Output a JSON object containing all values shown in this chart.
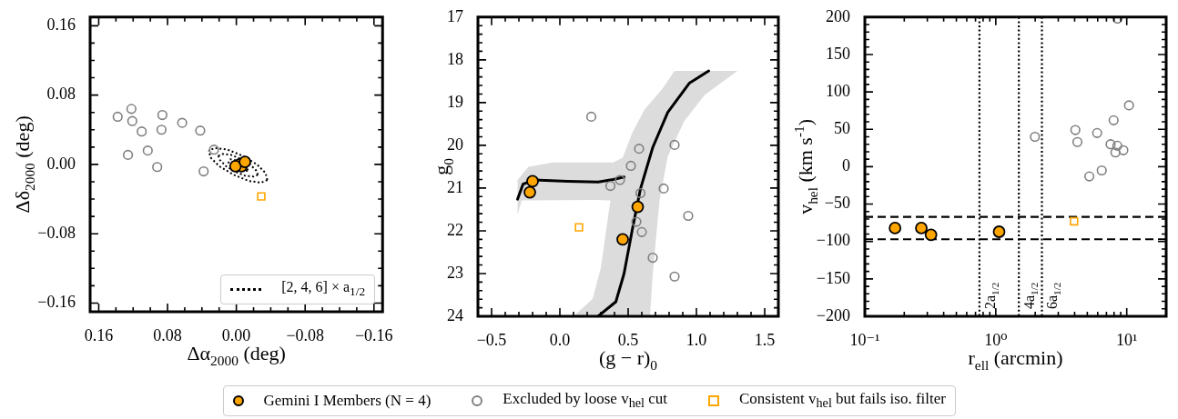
{
  "chart_data": [
    {
      "type": "scatter",
      "xlabel": "Δα$_{2000}$ (deg)",
      "ylabel": "Δδ$_{2000}$ (deg)",
      "xlim": [
        0.17,
        -0.17
      ],
      "ylim": [
        -0.17,
        0.17
      ],
      "xticks": [
        {
          "value": 0.16,
          "label": "0.16"
        },
        {
          "value": 0.14,
          "label": null
        },
        {
          "value": 0.12,
          "label": null
        },
        {
          "value": 0.1,
          "label": null
        },
        {
          "value": 0.08,
          "label": "0.08"
        },
        {
          "value": 0.06,
          "label": null
        },
        {
          "value": 0.04,
          "label": null
        },
        {
          "value": 0.02,
          "label": null
        },
        {
          "value": 0,
          "label": "0.00"
        },
        {
          "value": -0.02,
          "label": null
        },
        {
          "value": -0.04,
          "label": null
        },
        {
          "value": -0.06,
          "label": null
        },
        {
          "value": -0.08,
          "label": "−0.08"
        },
        {
          "value": -0.1,
          "label": null
        },
        {
          "value": -0.12,
          "label": null
        },
        {
          "value": -0.14,
          "label": null
        },
        {
          "value": -0.16,
          "label": "−0.16"
        }
      ],
      "yticks": [
        {
          "value": 0.16,
          "label": "0.16"
        },
        {
          "value": 0.14,
          "label": null
        },
        {
          "value": 0.12,
          "label": null
        },
        {
          "value": 0.1,
          "label": null
        },
        {
          "value": 0.08,
          "label": "0.08"
        },
        {
          "value": 0.06,
          "label": null
        },
        {
          "value": 0.04,
          "label": null
        },
        {
          "value": 0.02,
          "label": null
        },
        {
          "value": 0,
          "label": "0.00"
        },
        {
          "value": -0.02,
          "label": null
        },
        {
          "value": -0.04,
          "label": null
        },
        {
          "value": -0.06,
          "label": null
        },
        {
          "value": -0.08,
          "label": "−0.08"
        },
        {
          "value": -0.1,
          "label": null
        },
        {
          "value": -0.12,
          "label": null
        },
        {
          "value": -0.14,
          "label": null
        },
        {
          "value": -0.16,
          "label": "−0.16"
        }
      ],
      "legend": "bottom right",
      "series": [
        {
          "type": "scatter",
          "marker": "circle",
          "color": "#ffa500",
          "x": [
            -0.004,
            -0.006,
            0.001,
            -0.01
          ],
          "values": [
            0.0,
            -0.002,
            -0.002,
            0.003
          ]
        },
        {
          "type": "scatter",
          "marker": "circle",
          "color": "#808080",
          "x": [
            0.138,
            0.122,
            0.121,
            0.11,
            0.086,
            0.087,
            0.063,
            0.042,
            0.026,
            0.126,
            0.103,
            0.092,
            0.038
          ],
          "values": [
            0.055,
            0.064,
            0.05,
            0.038,
            0.057,
            0.04,
            0.048,
            0.039,
            0.017,
            0.011,
            0.016,
            -0.003,
            -0.008
          ]
        },
        {
          "type": "scatter",
          "marker": "square",
          "color": "#ffa500",
          "x": [
            -0.029
          ],
          "values": [
            -0.037
          ]
        },
        {
          "type": "line",
          "line_style": "dotted",
          "color": "#000000",
          "name": "[2, 4, 6] × a$_{1/2}$",
          "x": [
            -0.013,
            -0.013,
            -0.009,
            -0.004,
            0.002,
            0.007,
            0.009
          ],
          "values": [
            -0.007,
            -0.004,
            -0.001,
            0.003,
            0.005,
            0.006,
            0.005
          ]
        },
        {
          "type": "line",
          "line_style": "dotted",
          "color": "#000000",
          "x": [
            -0.013,
            -0.011,
            -0.006,
            0.0,
            0.005,
            0.009,
            0.009
          ],
          "values": [
            -0.007,
            -0.008,
            -0.007,
            -0.005,
            -0.001,
            0.002,
            0.005
          ]
        },
        {
          "type": "line",
          "line_style": "dotted",
          "color": "#000000",
          "x": [
            -0.025,
            -0.023,
            -0.016,
            -0.006,
            0.006,
            0.016,
            0.021
          ],
          "values": [
            -0.012,
            -0.007,
            0.0,
            0.006,
            0.011,
            0.012,
            0.01
          ]
        },
        {
          "type": "line",
          "line_style": "dotted",
          "color": "#000000",
          "x": [
            -0.025,
            -0.02,
            -0.01,
            0.002,
            0.012,
            0.019,
            0.021
          ],
          "values": [
            -0.012,
            -0.014,
            -0.013,
            -0.008,
            -0.002,
            0.005,
            0.01
          ]
        },
        {
          "type": "line",
          "line_style": "dotted",
          "color": "#000000",
          "x": [
            -0.036,
            -0.034,
            -0.024,
            -0.007,
            0.01,
            0.025,
            0.032
          ],
          "values": [
            -0.018,
            -0.01,
            0.0,
            0.01,
            0.017,
            0.019,
            0.016
          ]
        },
        {
          "type": "line",
          "line_style": "dotted",
          "color": "#000000",
          "x": [
            -0.036,
            -0.029,
            -0.014,
            0.003,
            0.02,
            0.03,
            0.032
          ],
          "values": [
            -0.018,
            -0.021,
            -0.019,
            -0.012,
            -0.002,
            0.008,
            0.016
          ]
        }
      ]
    },
    {
      "type": "scatter",
      "xlabel": "(g − r)$_{0}$",
      "ylabel": "g$_{0}$",
      "xlim": [
        -0.6,
        1.6
      ],
      "ylim": [
        24,
        17
      ],
      "xticks": [
        {
          "value": -0.5,
          "label": "−0.5"
        },
        {
          "value": -0.4,
          "label": null
        },
        {
          "value": -0.3,
          "label": null
        },
        {
          "value": -0.2,
          "label": null
        },
        {
          "value": -0.1,
          "label": null
        },
        {
          "value": 0,
          "label": "0.0"
        },
        {
          "value": 0.1,
          "label": null
        },
        {
          "value": 0.2,
          "label": null
        },
        {
          "value": 0.3,
          "label": null
        },
        {
          "value": 0.4,
          "label": null
        },
        {
          "value": 0.5,
          "label": "0.5"
        },
        {
          "value": 0.6,
          "label": null
        },
        {
          "value": 0.7,
          "label": null
        },
        {
          "value": 0.8,
          "label": null
        },
        {
          "value": 0.9,
          "label": null
        },
        {
          "value": 1,
          "label": "1.0"
        },
        {
          "value": 1.1,
          "label": null
        },
        {
          "value": 1.2,
          "label": null
        },
        {
          "value": 1.3,
          "label": null
        },
        {
          "value": 1.4,
          "label": null
        },
        {
          "value": 1.5,
          "label": "1.5"
        }
      ],
      "yticks": [
        17,
        {
          "value": 17.2,
          "label": null
        },
        {
          "value": 17.4,
          "label": null
        },
        {
          "value": 17.6,
          "label": null
        },
        {
          "value": 17.8,
          "label": null
        },
        18,
        {
          "value": 18.2,
          "label": null
        },
        {
          "value": 18.4,
          "label": null
        },
        {
          "value": 18.6,
          "label": null
        },
        {
          "value": 18.8,
          "label": null
        },
        19,
        {
          "value": 19.2,
          "label": null
        },
        {
          "value": 19.4,
          "label": null
        },
        {
          "value": 19.6,
          "label": null
        },
        {
          "value": 19.8,
          "label": null
        },
        20,
        {
          "value": 20.2,
          "label": null
        },
        {
          "value": 20.4,
          "label": null
        },
        {
          "value": 20.6,
          "label": null
        },
        {
          "value": 20.8,
          "label": null
        },
        21,
        {
          "value": 21.2,
          "label": null
        },
        {
          "value": 21.4,
          "label": null
        },
        {
          "value": 21.6,
          "label": null
        },
        {
          "value": 21.8,
          "label": null
        },
        22,
        {
          "value": 22.2,
          "label": null
        },
        {
          "value": 22.4,
          "label": null
        },
        {
          "value": 22.6,
          "label": null
        },
        {
          "value": 22.8,
          "label": null
        },
        23,
        {
          "value": 23.2,
          "label": null
        },
        {
          "value": 23.4,
          "label": null
        },
        {
          "value": 23.6,
          "label": null
        },
        {
          "value": 23.8,
          "label": null
        },
        24
      ],
      "series": [
        {
          "type": "scatter",
          "marker": "circle",
          "color": "#ffa500",
          "x": [
            -0.2,
            -0.22,
            0.57,
            0.46
          ],
          "values": [
            20.84,
            21.1,
            21.44,
            22.2
          ]
        },
        {
          "type": "scatter",
          "marker": "circle",
          "color": "#808080",
          "x": [
            0.23,
            0.58,
            0.84,
            0.52,
            0.44,
            0.37,
            0.76,
            0.59,
            0.56,
            0.94,
            0.6,
            0.68,
            0.84
          ],
          "values": [
            19.33,
            20.08,
            19.99,
            20.48,
            20.81,
            20.95,
            21.01,
            21.12,
            21.79,
            21.65,
            22.03,
            22.63,
            23.07
          ]
        },
        {
          "type": "scatter",
          "marker": "square",
          "color": "#ffa500",
          "x": [
            0.14
          ],
          "values": [
            21.92
          ]
        },
        {
          "type": "area",
          "color": "#dcdcdc",
          "x": [
            0.1,
            0.24,
            0.3,
            0.37,
            0.26,
            -0.28,
            -0.31,
            -0.31,
            -0.23,
            -0.05,
            0.39,
            0.46,
            0.53,
            0.62,
            0.75,
            0.84,
            1.3,
            1.06,
            0.91,
            0.79,
            0.73,
            0.68,
            0.66,
            0.1
          ],
          "values": [
            24.0,
            23.59,
            22.87,
            21.29,
            21.28,
            21.29,
            21.63,
            20.81,
            20.5,
            20.4,
            20.4,
            20.29,
            19.71,
            19.16,
            18.68,
            18.26,
            18.26,
            18.82,
            19.44,
            20.26,
            21.29,
            23.01,
            24.0,
            24.0
          ]
        },
        {
          "type": "line",
          "line_style": "solid",
          "color": "#000000",
          "x": [
            0.28,
            0.41,
            0.47,
            0.53,
            0.59,
            0.68,
            0.79,
            0.95,
            1.09
          ],
          "values": [
            24.0,
            23.66,
            23.0,
            21.98,
            21.02,
            20.05,
            19.23,
            18.54,
            18.26
          ]
        },
        {
          "type": "line",
          "line_style": "solid",
          "color": "#000000",
          "x": [
            -0.31,
            -0.27,
            -0.19,
            0.06,
            0.28,
            0.39,
            0.47
          ],
          "values": [
            21.26,
            20.91,
            20.81,
            20.84,
            20.86,
            20.8,
            20.74
          ]
        }
      ]
    },
    {
      "type": "scatter",
      "xlabel": "r$_{ell}$ (arcmin)",
      "ylabel": "v$_{hel}$ (km s$^{-1}$)",
      "log": "x",
      "xlim": [
        0.1,
        20
      ],
      "ylim": [
        -200,
        200
      ],
      "xticks": [
        {
          "value": 0.1,
          "label": "10⁻¹"
        },
        {
          "value": 0.2,
          "label": null
        },
        {
          "value": 0.3,
          "label": null
        },
        {
          "value": 0.4,
          "label": null
        },
        {
          "value": 0.5,
          "label": null
        },
        {
          "value": 0.6,
          "label": null
        },
        {
          "value": 0.7,
          "label": null
        },
        {
          "value": 0.8,
          "label": null
        },
        {
          "value": 0.9,
          "label": null
        },
        {
          "value": 1,
          "label": "10⁰"
        },
        {
          "value": 2,
          "label": null
        },
        {
          "value": 3,
          "label": null
        },
        {
          "value": 4,
          "label": null
        },
        {
          "value": 5,
          "label": null
        },
        {
          "value": 6,
          "label": null
        },
        {
          "value": 7,
          "label": null
        },
        {
          "value": 8,
          "label": null
        },
        {
          "value": 9,
          "label": null
        },
        {
          "value": 10,
          "label": "10¹"
        }
      ],
      "yticks": [
        {
          "value": -200,
          "label": "−200"
        },
        {
          "value": -190,
          "label": null
        },
        {
          "value": -180,
          "label": null
        },
        {
          "value": -170,
          "label": null
        },
        {
          "value": -160,
          "label": null
        },
        {
          "value": -150,
          "label": "−150"
        },
        {
          "value": -140,
          "label": null
        },
        {
          "value": -130,
          "label": null
        },
        {
          "value": -120,
          "label": null
        },
        {
          "value": -110,
          "label": null
        },
        {
          "value": -100,
          "label": "−100"
        },
        {
          "value": -90,
          "label": null
        },
        {
          "value": -80,
          "label": null
        },
        {
          "value": -70,
          "label": null
        },
        {
          "value": -60,
          "label": null
        },
        {
          "value": -50,
          "label": "−50"
        },
        {
          "value": -40,
          "label": null
        },
        {
          "value": -30,
          "label": null
        },
        {
          "value": -20,
          "label": null
        },
        {
          "value": -10,
          "label": null
        },
        0,
        {
          "value": 10,
          "label": null
        },
        {
          "value": 20,
          "label": null
        },
        {
          "value": 30,
          "label": null
        },
        {
          "value": 40,
          "label": null
        },
        50,
        {
          "value": 60,
          "label": null
        },
        {
          "value": 70,
          "label": null
        },
        {
          "value": 80,
          "label": null
        },
        {
          "value": 90,
          "label": null
        },
        100,
        {
          "value": 110,
          "label": null
        },
        {
          "value": 120,
          "label": null
        },
        {
          "value": 130,
          "label": null
        },
        {
          "value": 140,
          "label": null
        },
        150,
        {
          "value": 160,
          "label": null
        },
        {
          "value": 170,
          "label": null
        },
        {
          "value": 180,
          "label": null
        },
        {
          "value": 190,
          "label": null
        },
        200
      ],
      "legend": "bottom",
      "ref_lines": [
        {
          "axis": "y",
          "value": -67,
          "line_style": "dashed",
          "color": "#000000"
        },
        {
          "axis": "y",
          "value": -97,
          "line_style": "dashed",
          "color": "#000000"
        },
        {
          "axis": "x",
          "value": 0.75,
          "label": "2a$_{1/2}$",
          "line_style": "dotted",
          "color": "#000000"
        },
        {
          "axis": "x",
          "value": 1.5,
          "label": "4a$_{1/2}$",
          "line_style": "dotted",
          "color": "#000000"
        },
        {
          "axis": "x",
          "value": 2.25,
          "label": "6a$_{1/2}$",
          "line_style": "dotted",
          "color": "#000000"
        }
      ],
      "series": [
        {
          "type": "scatter",
          "marker": "circle",
          "name": "Gemini I Members (N = 4)",
          "color": "#ffa500",
          "x": [
            0.17,
            0.27,
            0.32,
            1.06
          ],
          "values": [
            -82,
            -82,
            -91,
            -87
          ],
          "errors": [
            8,
            5,
            8,
            6
          ]
        },
        {
          "type": "scatter",
          "marker": "circle",
          "name": "Excluded by loose v$_{hel}$ cut",
          "color": "#808080",
          "x": [
            1.99,
            4.05,
            4.2,
            5.94,
            5.18,
            6.44,
            7.94,
            7.53,
            8.47,
            8.2,
            9.42,
            10.4,
            8.5
          ],
          "values": [
            40,
            49,
            33,
            45,
            -13,
            -5,
            62,
            30,
            28,
            19,
            22,
            82,
            198
          ]
        },
        {
          "type": "scatter",
          "marker": "square",
          "name": "Consistent v$_{hel}$ but fails iso. filter",
          "color": "#ffa500",
          "x": [
            3.96
          ],
          "values": [
            -73
          ]
        }
      ]
    }
  ]
}
